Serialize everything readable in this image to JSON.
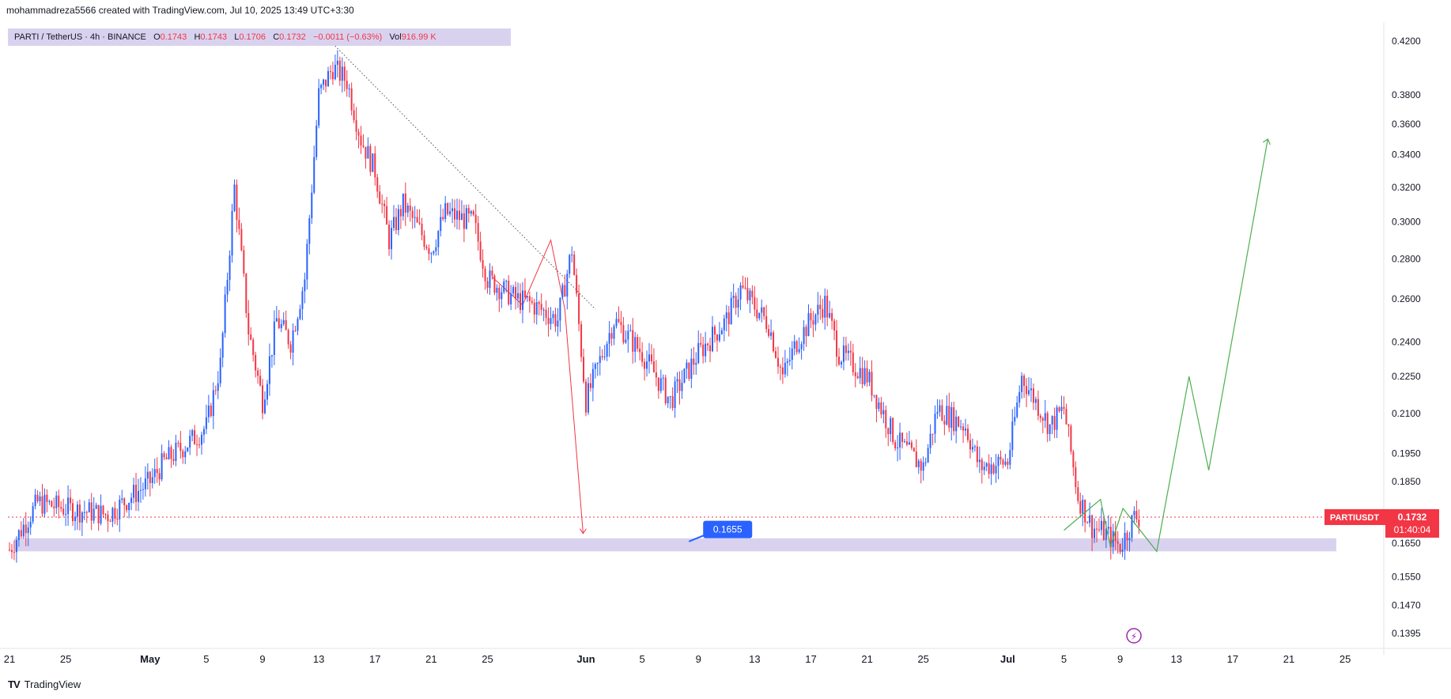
{
  "header": {
    "text": "mohammadreza5566 created with TradingView.com, Jul 10, 2025 13:49 UTC+3:30"
  },
  "legend": {
    "symbol": "PARTI / TetherUS · 4h · BINANCE",
    "o_label": "O",
    "o_value": "0.1743",
    "h_label": "H",
    "h_value": "0.1743",
    "l_label": "L",
    "l_value": "0.1706",
    "c_label": "C",
    "c_value": "0.1732",
    "change": "−0.0011 (−0.63%)",
    "vol_label": "Vol",
    "vol_value": "916.99 K"
  },
  "footer": {
    "brand": "TradingView",
    "logo": "TV"
  },
  "colors": {
    "up": "#2962ff",
    "down": "#f23645",
    "zone": "#d9d2ef",
    "projection": "#4caf50",
    "badge_blue": "#2962ff"
  },
  "chart_data": {
    "type": "candlestick",
    "y_scale": "log",
    "ylim": [
      0.134,
      0.44
    ],
    "y_ticks": [
      "0.4200",
      "0.3800",
      "0.3600",
      "0.3400",
      "0.3200",
      "0.3000",
      "0.2800",
      "0.2600",
      "0.2400",
      "0.2250",
      "0.2100",
      "0.1950",
      "0.1850",
      "0.1650",
      "0.1550",
      "0.1470",
      "0.1395"
    ],
    "x_ticks": [
      "21",
      "25",
      "May",
      "5",
      "9",
      "13",
      "17",
      "21",
      "25",
      "Jun",
      "5",
      "9",
      "13",
      "17",
      "21",
      "25",
      "Jul",
      "5",
      "9",
      "13",
      "17",
      "21",
      "25"
    ],
    "price_path": [
      [
        "Apr 21",
        0.163
      ],
      [
        "Apr 23",
        0.178
      ],
      [
        "Apr 25",
        0.176
      ],
      [
        "Apr 28",
        0.174
      ],
      [
        "May 1",
        0.185
      ],
      [
        "May 2",
        0.192
      ],
      [
        "May 4",
        0.2
      ],
      [
        "May 5",
        0.205
      ],
      [
        "May 6",
        0.23
      ],
      [
        "May 7",
        0.32
      ],
      [
        "May 8",
        0.245
      ],
      [
        "May 9",
        0.215
      ],
      [
        "May 10",
        0.25
      ],
      [
        "May 11",
        0.24
      ],
      [
        "May 12",
        0.27
      ],
      [
        "May 13",
        0.38
      ],
      [
        "May 14",
        0.4
      ],
      [
        "May 15",
        0.39
      ],
      [
        "May 16",
        0.35
      ],
      [
        "May 17",
        0.33
      ],
      [
        "May 18",
        0.29
      ],
      [
        "May 19",
        0.31
      ],
      [
        "May 21",
        0.285
      ],
      [
        "May 22",
        0.305
      ],
      [
        "May 24",
        0.3
      ],
      [
        "May 25",
        0.27
      ],
      [
        "May 27",
        0.26
      ],
      [
        "May 28",
        0.258
      ],
      [
        "May 30",
        0.25
      ],
      [
        "May 31",
        0.285
      ],
      [
        "Jun 1",
        0.215
      ],
      [
        "Jun 3",
        0.25
      ],
      [
        "Jun 5",
        0.235
      ],
      [
        "Jun 6",
        0.225
      ],
      [
        "Jun 7",
        0.215
      ],
      [
        "Jun 9",
        0.235
      ],
      [
        "Jun 11",
        0.25
      ],
      [
        "Jun 12",
        0.265
      ],
      [
        "Jun 14",
        0.248
      ],
      [
        "Jun 15",
        0.225
      ],
      [
        "Jun 16",
        0.24
      ],
      [
        "Jun 17",
        0.25
      ],
      [
        "Jun 18",
        0.258
      ],
      [
        "Jun 19",
        0.235
      ],
      [
        "Jun 21",
        0.225
      ],
      [
        "Jun 23",
        0.2
      ],
      [
        "Jun 25",
        0.19
      ],
      [
        "Jun 26",
        0.212
      ],
      [
        "Jun 28",
        0.205
      ],
      [
        "Jun 29",
        0.19
      ],
      [
        "Jul 1",
        0.192
      ],
      [
        "Jul 2",
        0.225
      ],
      [
        "Jul 4",
        0.205
      ],
      [
        "Jul 5",
        0.212
      ],
      [
        "Jul 6",
        0.18
      ],
      [
        "Jul 7",
        0.17
      ],
      [
        "Jul 8",
        0.168
      ],
      [
        "Jul 9",
        0.164
      ],
      [
        "Jul 10",
        0.1732
      ]
    ],
    "current_price": "0.1732",
    "current_label": "PARTIUSDT",
    "countdown": "01:40:04",
    "support_zone": [
      0.1625,
      0.1665
    ],
    "marker_label": "0.1655"
  }
}
